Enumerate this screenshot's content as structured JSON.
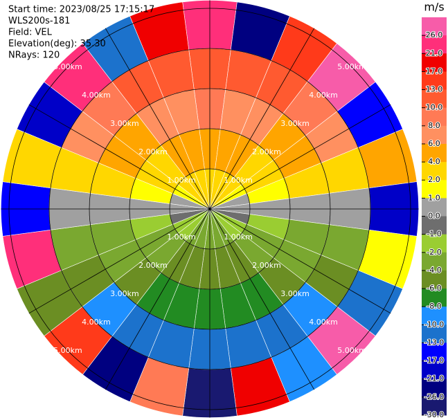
{
  "chart_data": {
    "type": "ppi",
    "header": [
      "Start time: 2023/08/25 17:15:17",
      "WLS200s-181",
      "Field: VEL",
      "Elevation(deg): 35.30",
      "NRays: 120"
    ],
    "azimuths": [
      0,
      15,
      30,
      45,
      60,
      75,
      90,
      105,
      120,
      135,
      150,
      165,
      180,
      195,
      210,
      225,
      240,
      255,
      270,
      285,
      300,
      315,
      330,
      345
    ],
    "range_edges": [
      0,
      1,
      2,
      3,
      4,
      5.2
    ],
    "values": [
      [
        3,
        3,
        2.5,
        2,
        1.5,
        0.8,
        0,
        -0.8,
        -1.5,
        -2,
        -2.5,
        -3,
        -3,
        -3,
        -2.5,
        -2,
        -1.5,
        -0.8,
        0,
        0.8,
        1.5,
        2,
        2.5,
        3
      ],
      [
        5,
        4.8,
        4.3,
        3.5,
        2.5,
        1.3,
        0,
        -1.3,
        -2.5,
        -3.5,
        -4.3,
        -4.8,
        -5,
        -4.8,
        -4.3,
        -3.5,
        -2.5,
        -1.3,
        0,
        1.3,
        2.5,
        3.5,
        4.3,
        4.8
      ],
      [
        8,
        7.7,
        6.9,
        5.7,
        4,
        2.1,
        0.3,
        -2.1,
        -4,
        -5.7,
        -6.9,
        -7.7,
        -8,
        -7.7,
        -6.9,
        -5.7,
        -4,
        -2.1,
        0.3,
        2.1,
        4,
        5.7,
        6.9,
        7.7
      ],
      [
        12,
        11.6,
        10.4,
        8.5,
        6,
        3.1,
        0.5,
        -3.1,
        -6,
        -8.5,
        -10.4,
        -11.6,
        -12,
        -11.6,
        -10.4,
        -8.5,
        -6,
        -3.1,
        0.5,
        3.1,
        6,
        8.5,
        10.4,
        11.6
      ],
      [
        21,
        -26,
        13,
        27,
        -17,
        5,
        -21,
        1,
        -13,
        28,
        -9,
        17,
        -29,
        8,
        -26,
        15,
        -5,
        22,
        -15,
        3,
        -21,
        25,
        -11,
        18
      ]
    ],
    "rings": [
      {
        "value": 1,
        "label": "1.00km"
      },
      {
        "value": 2,
        "label": "2.00km"
      },
      {
        "value": 3,
        "label": "3.00km"
      },
      {
        "value": 4,
        "label": "4.00km"
      },
      {
        "value": 5,
        "label": "5.00km"
      }
    ],
    "colorbar": {
      "title": "m/s",
      "levels": [
        30,
        26,
        21,
        17,
        13,
        10,
        8,
        6,
        4,
        2,
        1,
        0,
        -1,
        -2,
        -4,
        -6,
        -8,
        -10,
        -13,
        -17,
        -21,
        -26,
        -30
      ],
      "colors": [
        "#f75ca9",
        "#ff2f7a",
        "#f00000",
        "#ff3a1a",
        "#ff5a30",
        "#ff7a55",
        "#ff9060",
        "#ffa500",
        "#ffd700",
        "#ffff00",
        "#a0a0a0",
        "#6e6e6e",
        "#9acd32",
        "#7aa830",
        "#6b8e23",
        "#228b22",
        "#1e90ff",
        "#1c72cc",
        "#0000ff",
        "#0000c8",
        "#000080",
        "#191970"
      ],
      "ticks": [
        {
          "value": 26,
          "label": "26.0"
        },
        {
          "value": 21,
          "label": "21.0"
        },
        {
          "value": 17,
          "label": "17.0"
        },
        {
          "value": 13,
          "label": "13.0"
        },
        {
          "value": 10,
          "label": "10.0"
        },
        {
          "value": 8,
          "label": "8.0"
        },
        {
          "value": 6,
          "label": "6.0"
        },
        {
          "value": 4,
          "label": "4.0"
        },
        {
          "value": 2,
          "label": "2.0"
        },
        {
          "value": 1,
          "label": "1.0"
        },
        {
          "value": 0,
          "label": "0.0"
        },
        {
          "value": -1,
          "label": "-1.0"
        },
        {
          "value": -2,
          "label": "-2.0"
        },
        {
          "value": -4,
          "label": "-4.0"
        },
        {
          "value": -6,
          "label": "-6.0"
        },
        {
          "value": -8,
          "label": "-8.0"
        },
        {
          "value": -10,
          "label": "-10.0"
        },
        {
          "value": -13,
          "label": "-13.0"
        },
        {
          "value": -17,
          "label": "-17.0"
        },
        {
          "value": -21,
          "label": "-21.0"
        },
        {
          "value": -26,
          "label": "-26.0"
        },
        {
          "value": -30,
          "label": "-30.0"
        }
      ]
    }
  }
}
